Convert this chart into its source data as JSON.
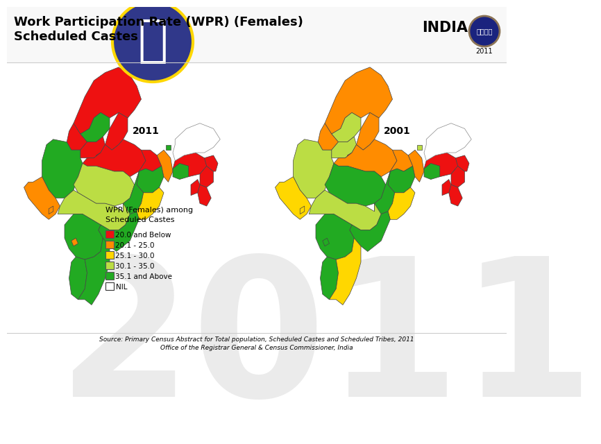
{
  "title_line1": "Work Participation Rate (WPR) (Females)",
  "title_line2": "Scheduled Castes",
  "india_label": "INDIA",
  "year_label": "2011",
  "map_year_left": "2011",
  "map_year_right": "2001",
  "legend_title": "WPR (Females) among\nScheduled Castes",
  "legend_items": [
    {
      "label": "20.0 and Below",
      "color": "#EE1111"
    },
    {
      "label": "20.1 - 25.0",
      "color": "#FF8C00"
    },
    {
      "label": "25.1 - 30.0",
      "color": "#FFD700"
    },
    {
      "label": "30.1 - 35.0",
      "color": "#BBDD44"
    },
    {
      "label": "35.1 and Above",
      "color": "#22AA22"
    },
    {
      "label": "NIL",
      "color": "#FFFFFF"
    }
  ],
  "source_line1": "Source: Primary Census Abstract for Total population, Scheduled Castes and Scheduled Tribes, 2011",
  "source_line2": "Office of the Registrar General & Census Commissioner, India",
  "bg_color": "#FFFFFF",
  "title_fontsize": 13,
  "india_fontsize": 15,
  "legend_title_fontsize": 8,
  "legend_item_fontsize": 7.5,
  "source_fontsize": 6.5,
  "watermark_text": "2011",
  "watermark_fontsize": 200,
  "watermark_color": "#000000",
  "watermark_alpha": 0.08
}
